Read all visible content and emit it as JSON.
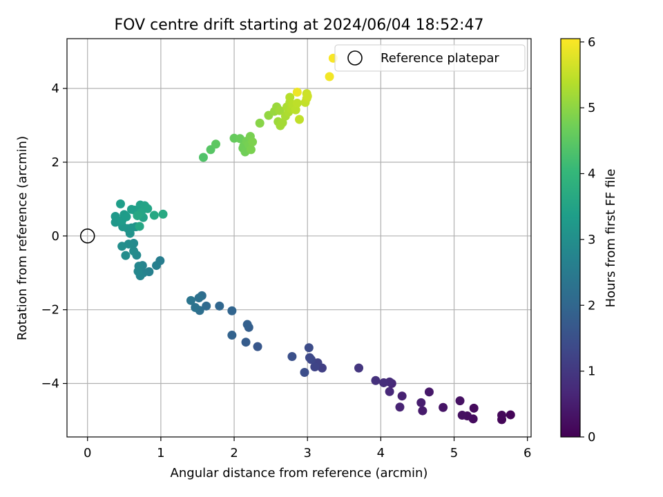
{
  "chart_data": {
    "type": "scatter",
    "title": "FOV centre drift starting at 2024/06/04 18:52:47",
    "xlabel": "Angular distance from reference (arcmin)",
    "ylabel": "Rotation from reference (arcmin)",
    "xlim": [
      -0.28,
      6.05
    ],
    "ylim": [
      -5.45,
      5.35
    ],
    "xticks": [
      0,
      1,
      2,
      3,
      4,
      5,
      6
    ],
    "yticks": [
      -4,
      -2,
      0,
      2,
      4
    ],
    "grid": true,
    "legend": {
      "placement": "top-right",
      "entries": [
        "Reference platepar"
      ]
    },
    "reference_point": {
      "x": 0,
      "y": 0
    },
    "colorbar": {
      "label": "Hours from first FF file",
      "range": [
        0,
        6.05
      ],
      "ticks": [
        0,
        1,
        2,
        3,
        4,
        5,
        6
      ],
      "colormap": "viridis"
    },
    "colormap_stops": [
      "#440154",
      "#482878",
      "#3e4989",
      "#31688e",
      "#26828e",
      "#1f9e89",
      "#35b779",
      "#6ece58",
      "#b5de2b",
      "#fde725"
    ],
    "points": [
      {
        "x": 5.77,
        "y": -4.85,
        "t": 0.05
      },
      {
        "x": 5.65,
        "y": -4.98,
        "t": 0.08
      },
      {
        "x": 5.65,
        "y": -4.86,
        "t": 0.12
      },
      {
        "x": 5.27,
        "y": -4.67,
        "t": 0.15
      },
      {
        "x": 5.26,
        "y": -4.96,
        "t": 0.18
      },
      {
        "x": 5.18,
        "y": -4.88,
        "t": 0.22
      },
      {
        "x": 5.11,
        "y": -4.86,
        "t": 0.25
      },
      {
        "x": 5.08,
        "y": -4.47,
        "t": 0.28
      },
      {
        "x": 4.85,
        "y": -4.65,
        "t": 0.33
      },
      {
        "x": 4.66,
        "y": -4.23,
        "t": 0.4
      },
      {
        "x": 4.57,
        "y": -4.74,
        "t": 0.45
      },
      {
        "x": 4.55,
        "y": -4.52,
        "t": 0.5
      },
      {
        "x": 4.29,
        "y": -4.34,
        "t": 0.55
      },
      {
        "x": 4.26,
        "y": -4.64,
        "t": 0.6
      },
      {
        "x": 4.15,
        "y": -4.0,
        "t": 0.65
      },
      {
        "x": 4.12,
        "y": -4.22,
        "t": 0.7
      },
      {
        "x": 4.12,
        "y": -3.96,
        "t": 0.75
      },
      {
        "x": 4.04,
        "y": -3.98,
        "t": 0.8
      },
      {
        "x": 3.93,
        "y": -3.92,
        "t": 0.85
      },
      {
        "x": 3.7,
        "y": -3.58,
        "t": 0.95
      },
      {
        "x": 3.2,
        "y": -3.58,
        "t": 1.15
      },
      {
        "x": 3.14,
        "y": -3.44,
        "t": 1.2
      },
      {
        "x": 3.1,
        "y": -3.55,
        "t": 1.25
      },
      {
        "x": 3.05,
        "y": -3.35,
        "t": 1.3
      },
      {
        "x": 3.03,
        "y": -3.3,
        "t": 1.35
      },
      {
        "x": 3.02,
        "y": -3.03,
        "t": 1.4
      },
      {
        "x": 2.96,
        "y": -3.7,
        "t": 1.45
      },
      {
        "x": 2.79,
        "y": -3.27,
        "t": 1.5
      },
      {
        "x": 2.32,
        "y": -3.0,
        "t": 1.65
      },
      {
        "x": 2.16,
        "y": -2.88,
        "t": 1.75
      },
      {
        "x": 2.2,
        "y": -2.48,
        "t": 1.8
      },
      {
        "x": 2.18,
        "y": -2.4,
        "t": 1.85
      },
      {
        "x": 1.97,
        "y": -2.69,
        "t": 1.9
      },
      {
        "x": 1.97,
        "y": -2.03,
        "t": 1.95
      },
      {
        "x": 1.8,
        "y": -1.9,
        "t": 2.0
      },
      {
        "x": 1.62,
        "y": -1.9,
        "t": 2.1
      },
      {
        "x": 1.56,
        "y": -1.62,
        "t": 2.15
      },
      {
        "x": 1.53,
        "y": -2.02,
        "t": 2.2
      },
      {
        "x": 1.52,
        "y": -1.68,
        "t": 2.25
      },
      {
        "x": 1.47,
        "y": -1.94,
        "t": 2.3
      },
      {
        "x": 1.41,
        "y": -1.75,
        "t": 2.35
      },
      {
        "x": 0.99,
        "y": -0.67,
        "t": 2.55
      },
      {
        "x": 0.94,
        "y": -0.8,
        "t": 2.6
      },
      {
        "x": 0.84,
        "y": -0.97,
        "t": 2.65
      },
      {
        "x": 0.76,
        "y": -1.0,
        "t": 2.7
      },
      {
        "x": 0.75,
        "y": -0.8,
        "t": 2.72
      },
      {
        "x": 0.72,
        "y": -1.08,
        "t": 2.75
      },
      {
        "x": 0.7,
        "y": -0.82,
        "t": 2.78
      },
      {
        "x": 0.69,
        "y": -0.96,
        "t": 2.8
      },
      {
        "x": 0.67,
        "y": -0.52,
        "t": 2.85
      },
      {
        "x": 0.63,
        "y": -0.2,
        "t": 2.88
      },
      {
        "x": 0.63,
        "y": -0.41,
        "t": 2.9
      },
      {
        "x": 0.56,
        "y": -0.22,
        "t": 2.92
      },
      {
        "x": 0.52,
        "y": -0.53,
        "t": 2.95
      },
      {
        "x": 0.47,
        "y": -0.28,
        "t": 2.98
      },
      {
        "x": 0.66,
        "y": 0.25,
        "t": 3.05
      },
      {
        "x": 0.58,
        "y": 0.07,
        "t": 3.1
      },
      {
        "x": 0.55,
        "y": 0.2,
        "t": 3.12
      },
      {
        "x": 0.6,
        "y": 0.22,
        "t": 3.15
      },
      {
        "x": 0.48,
        "y": 0.25,
        "t": 3.18
      },
      {
        "x": 0.44,
        "y": 0.38,
        "t": 3.2
      },
      {
        "x": 0.38,
        "y": 0.37,
        "t": 3.22
      },
      {
        "x": 0.38,
        "y": 0.53,
        "t": 3.25
      },
      {
        "x": 0.47,
        "y": 0.42,
        "t": 3.28
      },
      {
        "x": 0.5,
        "y": 0.58,
        "t": 3.3
      },
      {
        "x": 0.53,
        "y": 0.52,
        "t": 3.32
      },
      {
        "x": 0.45,
        "y": 0.87,
        "t": 3.35
      },
      {
        "x": 0.6,
        "y": 0.72,
        "t": 3.38
      },
      {
        "x": 0.64,
        "y": 0.7,
        "t": 3.4
      },
      {
        "x": 0.7,
        "y": 0.65,
        "t": 3.42
      },
      {
        "x": 0.72,
        "y": 0.84,
        "t": 3.45
      },
      {
        "x": 0.76,
        "y": 0.5,
        "t": 3.48
      },
      {
        "x": 0.78,
        "y": 0.82,
        "t": 3.5
      },
      {
        "x": 0.82,
        "y": 0.74,
        "t": 3.52
      },
      {
        "x": 0.73,
        "y": 0.63,
        "t": 3.55
      },
      {
        "x": 0.71,
        "y": 0.26,
        "t": 3.58
      },
      {
        "x": 0.68,
        "y": 0.55,
        "t": 3.6
      },
      {
        "x": 0.91,
        "y": 0.56,
        "t": 3.62
      },
      {
        "x": 1.03,
        "y": 0.59,
        "t": 3.65
      },
      {
        "x": 1.58,
        "y": 2.13,
        "t": 4.35
      },
      {
        "x": 1.68,
        "y": 2.34,
        "t": 4.45
      },
      {
        "x": 1.75,
        "y": 2.49,
        "t": 4.5
      },
      {
        "x": 2.0,
        "y": 2.65,
        "t": 4.6
      },
      {
        "x": 2.08,
        "y": 2.64,
        "t": 4.65
      },
      {
        "x": 2.12,
        "y": 2.38,
        "t": 4.68
      },
      {
        "x": 2.13,
        "y": 2.44,
        "t": 4.7
      },
      {
        "x": 2.15,
        "y": 2.28,
        "t": 4.72
      },
      {
        "x": 2.17,
        "y": 2.57,
        "t": 4.75
      },
      {
        "x": 2.2,
        "y": 2.48,
        "t": 4.78
      },
      {
        "x": 2.22,
        "y": 2.7,
        "t": 4.8
      },
      {
        "x": 2.23,
        "y": 2.34,
        "t": 4.82
      },
      {
        "x": 2.25,
        "y": 2.55,
        "t": 4.85
      },
      {
        "x": 2.35,
        "y": 3.06,
        "t": 4.95
      },
      {
        "x": 2.47,
        "y": 3.27,
        "t": 5.05
      },
      {
        "x": 2.55,
        "y": 3.38,
        "t": 5.1
      },
      {
        "x": 2.58,
        "y": 3.5,
        "t": 5.12
      },
      {
        "x": 2.6,
        "y": 3.1,
        "t": 5.15
      },
      {
        "x": 2.62,
        "y": 3.4,
        "t": 5.18
      },
      {
        "x": 2.63,
        "y": 2.99,
        "t": 5.2
      },
      {
        "x": 2.66,
        "y": 3.07,
        "t": 5.22
      },
      {
        "x": 2.7,
        "y": 3.25,
        "t": 5.25
      },
      {
        "x": 2.72,
        "y": 3.5,
        "t": 5.28
      },
      {
        "x": 2.74,
        "y": 3.36,
        "t": 5.3
      },
      {
        "x": 2.76,
        "y": 3.62,
        "t": 5.32
      },
      {
        "x": 2.78,
        "y": 3.44,
        "t": 5.35
      },
      {
        "x": 2.76,
        "y": 3.76,
        "t": 5.38
      },
      {
        "x": 2.8,
        "y": 3.56,
        "t": 5.4
      },
      {
        "x": 2.84,
        "y": 3.42,
        "t": 5.42
      },
      {
        "x": 2.86,
        "y": 3.6,
        "t": 5.45
      },
      {
        "x": 2.89,
        "y": 3.16,
        "t": 5.48
      },
      {
        "x": 2.97,
        "y": 3.62,
        "t": 5.5
      },
      {
        "x": 2.99,
        "y": 3.73,
        "t": 5.55
      },
      {
        "x": 2.99,
        "y": 3.86,
        "t": 5.58
      },
      {
        "x": 3.0,
        "y": 3.79,
        "t": 5.6
      },
      {
        "x": 2.86,
        "y": 3.9,
        "t": 5.9
      },
      {
        "x": 3.3,
        "y": 4.32,
        "t": 5.95
      },
      {
        "x": 3.35,
        "y": 4.82,
        "t": 6.0
      }
    ]
  }
}
